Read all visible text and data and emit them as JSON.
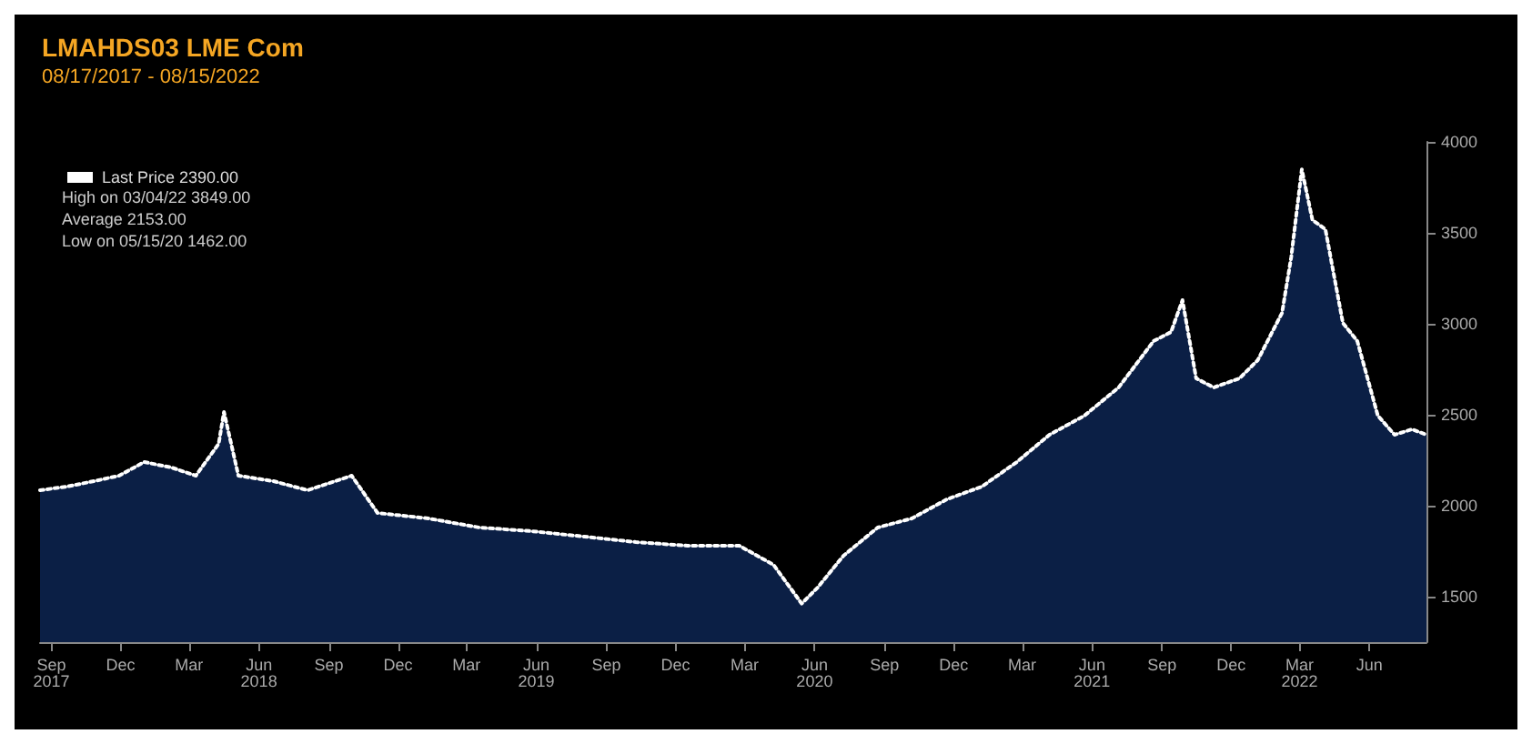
{
  "chart_data": {
    "type": "area",
    "title": "LMAHDS03 LME Com",
    "subtitle": "08/17/2017 - 08/15/2022",
    "x": [
      "2017-08-17",
      "2017-09-21",
      "2017-10-27",
      "2017-11-29",
      "2018-01-01",
      "2018-02-06",
      "2018-03-10",
      "2018-04-09",
      "2018-04-16",
      "2018-05-05",
      "2018-06-20",
      "2018-08-04",
      "2018-10-01",
      "2018-11-04",
      "2019-01-10",
      "2019-03-18",
      "2019-05-26",
      "2019-08-03",
      "2019-10-10",
      "2019-12-17",
      "2020-02-23",
      "2020-04-08",
      "2020-05-15",
      "2020-06-05",
      "2020-07-09",
      "2020-08-23",
      "2020-10-07",
      "2020-11-22",
      "2021-01-07",
      "2021-02-22",
      "2021-04-06",
      "2021-05-22",
      "2021-07-06",
      "2021-08-21",
      "2021-09-13",
      "2021-09-28",
      "2021-10-16",
      "2021-11-08",
      "2021-12-12",
      "2022-01-05",
      "2022-02-06",
      "2022-02-18",
      "2022-03-04",
      "2022-03-18",
      "2022-04-04",
      "2022-04-27",
      "2022-05-16",
      "2022-06-12",
      "2022-07-04",
      "2022-07-27",
      "2022-08-15"
    ],
    "series": [
      {
        "name": "Last Price 2390.00",
        "color": "#ffffff",
        "values": [
          2085,
          2105,
          2135,
          2165,
          2240,
          2210,
          2165,
          2340,
          2515,
          2165,
          2135,
          2085,
          2165,
          1960,
          1930,
          1880,
          1860,
          1830,
          1800,
          1780,
          1780,
          1675,
          1462,
          1550,
          1725,
          1880,
          1930,
          2035,
          2105,
          2240,
          2390,
          2495,
          2650,
          2905,
          2955,
          3130,
          2700,
          2650,
          2700,
          2800,
          3060,
          3365,
          3849,
          3570,
          3520,
          3005,
          2905,
          2495,
          2390,
          2420,
          2390
        ]
      }
    ],
    "ylim": [
      1250,
      4000
    ],
    "yticks": [
      1500,
      2000,
      2500,
      3000,
      3500,
      4000
    ],
    "xticks": [
      {
        "value": "2017-09-01",
        "label": "Sep\n2017"
      },
      {
        "value": "2017-12-01",
        "label": "Dec"
      },
      {
        "value": "2018-03-01",
        "label": "Mar"
      },
      {
        "value": "2018-06-01",
        "label": "Jun\n2018"
      },
      {
        "value": "2018-09-01",
        "label": "Sep"
      },
      {
        "value": "2018-12-01",
        "label": "Dec"
      },
      {
        "value": "2019-03-01",
        "label": "Mar"
      },
      {
        "value": "2019-06-01",
        "label": "Jun\n2019"
      },
      {
        "value": "2019-09-01",
        "label": "Sep"
      },
      {
        "value": "2019-12-01",
        "label": "Dec"
      },
      {
        "value": "2020-03-01",
        "label": "Mar"
      },
      {
        "value": "2020-06-01",
        "label": "Jun\n2020"
      },
      {
        "value": "2020-09-01",
        "label": "Sep"
      },
      {
        "value": "2020-12-01",
        "label": "Dec"
      },
      {
        "value": "2021-03-01",
        "label": "Mar"
      },
      {
        "value": "2021-06-01",
        "label": "Jun\n2021"
      },
      {
        "value": "2021-09-01",
        "label": "Sep"
      },
      {
        "value": "2021-12-01",
        "label": "Dec"
      },
      {
        "value": "2022-03-01",
        "label": "Mar\n2022"
      },
      {
        "value": "2022-06-01",
        "label": "Jun"
      }
    ],
    "xlim": [
      "2017-08-17",
      "2022-08-15"
    ],
    "annotations": [
      "High on 03/04/22 3849.00",
      "Average 2153.00",
      "Low on 05/15/20 1462.00"
    ],
    "legend": "top left",
    "grid": false,
    "marker": "none",
    "line_style": "dotted"
  }
}
